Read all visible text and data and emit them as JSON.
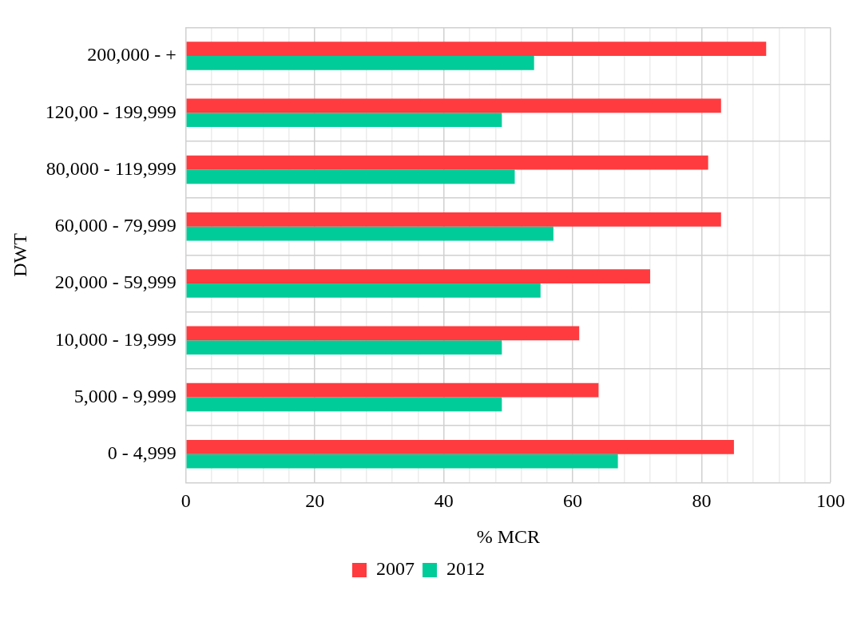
{
  "chart_data": {
    "type": "bar",
    "orientation": "horizontal",
    "xlabel": "% MCR",
    "ylabel": "DWT",
    "categories": [
      "200,000 - +",
      "120,00 - 199,999",
      "80,000 - 119,999",
      "60,000 - 79,999",
      "20,000 - 59,999",
      "10,000 - 19,999",
      "5,000 - 9,999",
      "0 - 4,999"
    ],
    "series": [
      {
        "name": "2007",
        "color": "#ff3b3f",
        "values": [
          90,
          83,
          81,
          83,
          72,
          61,
          64,
          85
        ]
      },
      {
        "name": "2012",
        "color": "#00cc99",
        "values": [
          54,
          49,
          51,
          57,
          55,
          49,
          49,
          67
        ]
      }
    ],
    "xlim": [
      0,
      100
    ],
    "xticks": [
      0,
      {
        "value": 4,
        "label": null
      },
      {
        "value": 8,
        "label": null
      },
      {
        "value": 12,
        "label": null
      },
      {
        "value": 16,
        "label": null
      },
      20,
      {
        "value": 24,
        "label": null
      },
      {
        "value": 28,
        "label": null
      },
      {
        "value": 32,
        "label": null
      },
      {
        "value": 36,
        "label": null
      },
      40,
      {
        "value": 44,
        "label": null
      },
      {
        "value": 48,
        "label": null
      },
      {
        "value": 52,
        "label": null
      },
      {
        "value": 56,
        "label": null
      },
      60,
      {
        "value": 64,
        "label": null
      },
      {
        "value": 68,
        "label": null
      },
      {
        "value": 72,
        "label": null
      },
      {
        "value": 76,
        "label": null
      },
      80,
      {
        "value": 84,
        "label": null
      },
      {
        "value": 88,
        "label": null
      },
      {
        "value": 92,
        "label": null
      },
      {
        "value": 96,
        "label": null
      },
      100
    ],
    "grid": true,
    "legend": "bottom"
  }
}
